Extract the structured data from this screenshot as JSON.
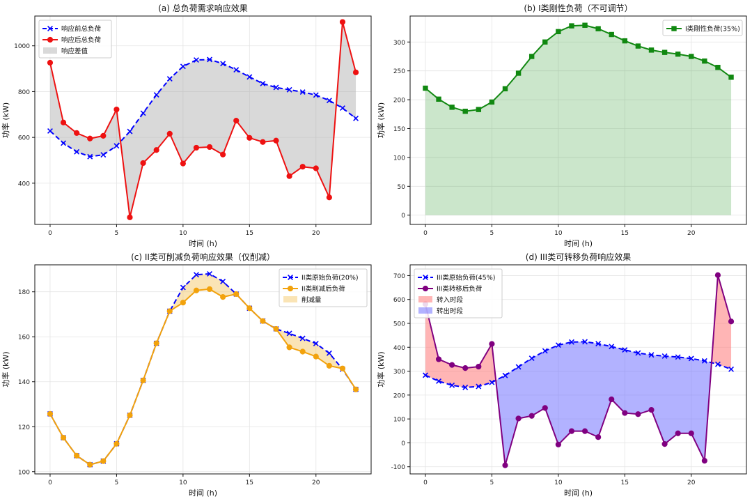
{
  "chart_data": [
    {
      "type": "line",
      "title": "(a) 总负荷需求响应效果",
      "xlabel": "时间 (h)",
      "ylabel": "功率 (kW)",
      "x": [
        0,
        1,
        2,
        3,
        4,
        5,
        6,
        7,
        8,
        9,
        10,
        11,
        12,
        13,
        14,
        15,
        16,
        17,
        18,
        19,
        20,
        21,
        22,
        23
      ],
      "xlim": [
        -1.15,
        24.15
      ],
      "ylim": [
        220,
        1130
      ],
      "xticks": [
        0,
        5,
        10,
        15,
        20
      ],
      "yticks": [
        400,
        600,
        800,
        1000
      ],
      "grid": true,
      "legend_position": "top-left",
      "series": [
        {
          "name": "响应前总负荷",
          "color": "#0000ff",
          "style": "dashed",
          "marker": "x",
          "values": [
            628,
            575,
            537,
            516,
            524,
            563,
            626,
            706,
            786,
            856,
            910,
            938,
            940,
            922,
            895,
            864,
            835,
            818,
            808,
            798,
            785,
            761,
            728,
            683
          ]
        },
        {
          "name": "响应后总负荷",
          "color": "#ee1111",
          "style": "solid",
          "marker": "circle",
          "values": [
            926,
            665,
            619,
            595,
            607,
            722,
            251,
            488,
            545,
            616,
            486,
            555,
            558,
            525,
            673,
            598,
            580,
            586,
            431,
            472,
            465,
            338,
            1104,
            884
          ]
        }
      ],
      "fills": [
        {
          "name": "响应差值",
          "color": "#aaaaaa",
          "opacity": 0.45,
          "between": [
            0,
            1
          ]
        }
      ]
    },
    {
      "type": "area",
      "title": "(b) I类刚性负荷（不可调节）",
      "xlabel": "时间 (h)",
      "ylabel": "功率 (kW)",
      "x": [
        0,
        1,
        2,
        3,
        4,
        5,
        6,
        7,
        8,
        9,
        10,
        11,
        12,
        13,
        14,
        15,
        16,
        17,
        18,
        19,
        20,
        21,
        22,
        23
      ],
      "xlim": [
        -1.15,
        24.15
      ],
      "ylim": [
        -16,
        345
      ],
      "xticks": [
        0,
        5,
        10,
        15,
        20
      ],
      "yticks": [
        0,
        50,
        100,
        150,
        200,
        250,
        300
      ],
      "grid": true,
      "legend_position": "top-right",
      "series": [
        {
          "name": "I类刚性负荷(35%)",
          "color": "#118811",
          "style": "solid",
          "marker": "square",
          "values": [
            220,
            201,
            187,
            180,
            183,
            196,
            219,
            246,
            275,
            300,
            318,
            328,
            329,
            323,
            313,
            302,
            293,
            286,
            282,
            279,
            275,
            267,
            256,
            239
          ]
        }
      ],
      "fills": [
        {
          "color": "#2e9a2e",
          "opacity": 0.25,
          "between": [
            0,
            "zero"
          ]
        }
      ]
    },
    {
      "type": "line",
      "title": "(c) II类可削减负荷响应效果（仅削减）",
      "xlabel": "时间 (h)",
      "ylabel": "功率 (kW)",
      "x": [
        0,
        1,
        2,
        3,
        4,
        5,
        6,
        7,
        8,
        9,
        10,
        11,
        12,
        13,
        14,
        15,
        16,
        17,
        18,
        19,
        20,
        21,
        22,
        23
      ],
      "xlim": [
        -1.15,
        24.15
      ],
      "ylim": [
        99,
        192
      ],
      "xticks": [
        0,
        5,
        10,
        15,
        20
      ],
      "yticks": [
        100,
        120,
        140,
        160,
        180
      ],
      "grid": true,
      "legend_position": "top-right",
      "series": [
        {
          "name": "II类原始负荷(20%)",
          "color": "#0000ff",
          "style": "dashed",
          "marker": "x",
          "values": [
            125.7,
            115.1,
            107.1,
            103.1,
            104.7,
            112.4,
            125.1,
            140.6,
            157.1,
            171.4,
            181.9,
            187.6,
            188.0,
            184.6,
            179.0,
            172.7,
            167.0,
            163.5,
            161.5,
            159.3,
            157.0,
            152.7,
            145.6,
            136.6
          ]
        },
        {
          "name": "II类削减后负荷",
          "color": "#f2a20c",
          "style": "solid",
          "marker": "circle",
          "values": [
            125.7,
            115.1,
            107.1,
            103.1,
            104.7,
            112.4,
            125.1,
            140.6,
            157.1,
            171.4,
            175.2,
            180.6,
            181.2,
            177.7,
            179.0,
            172.7,
            167.0,
            163.5,
            155.3,
            153.4,
            151.2,
            147.1,
            145.9,
            136.6
          ]
        }
      ],
      "fills": [
        {
          "name": "削减量",
          "color": "#f6c96b",
          "opacity": 0.5,
          "between": [
            0,
            1
          ]
        }
      ]
    },
    {
      "type": "line",
      "title": "(d) III类可转移负荷响应效果",
      "xlabel": "时间 (h)",
      "ylabel": "功率 (kW)",
      "x": [
        0,
        1,
        2,
        3,
        4,
        5,
        6,
        7,
        8,
        9,
        10,
        11,
        12,
        13,
        14,
        15,
        16,
        17,
        18,
        19,
        20,
        21,
        22,
        23
      ],
      "xlim": [
        -1.15,
        24.15
      ],
      "ylim": [
        -130,
        745
      ],
      "xticks": [
        0,
        5,
        10,
        15,
        20
      ],
      "yticks": [
        -100,
        0,
        100,
        200,
        300,
        400,
        500,
        600,
        700
      ],
      "grid": true,
      "legend_position": "top-left",
      "series": [
        {
          "name": "III类原始负荷(45%)",
          "color": "#0000ff",
          "style": "dashed",
          "marker": "x",
          "values": [
            283,
            258,
            241,
            232,
            236,
            253,
            282,
            318,
            354,
            385,
            409,
            422,
            423,
            415,
            403,
            389,
            376,
            368,
            363,
            359,
            353,
            343,
            329,
            308
          ]
        },
        {
          "name": "III类转移后负荷",
          "color": "#800080",
          "style": "solid",
          "marker": "circle",
          "values": [
            581,
            350,
            326,
            313,
            319,
            414,
            -94,
            102,
            113,
            146,
            -7,
            49,
            49,
            24,
            182,
            125,
            120,
            138,
            -5,
            40,
            40,
            -75,
            702,
            508
          ]
        }
      ],
      "fills": [
        {
          "name": "转入时段",
          "color": "#ff6b6b",
          "opacity": 0.5,
          "between": [
            1,
            0
          ],
          "where": "above"
        },
        {
          "name": "转出时段",
          "color": "#6666ff",
          "opacity": 0.5,
          "between": [
            0,
            1
          ],
          "where": "above"
        }
      ]
    }
  ]
}
